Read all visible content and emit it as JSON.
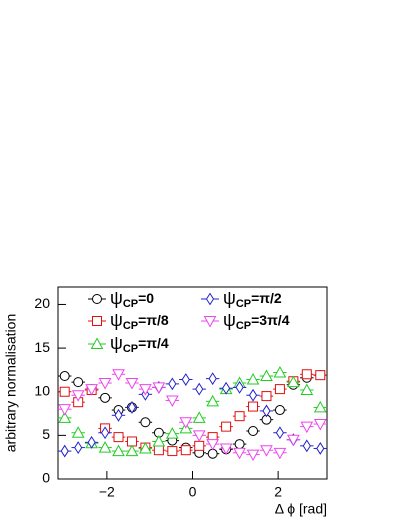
{
  "chart_data": {
    "type": "scatter",
    "x_label": "Δ ϕ [rad]",
    "y_label": "arbitrary normalisation",
    "xlim": [
      -3.1416,
      3.1416
    ],
    "ylim": [
      0,
      22
    ],
    "xticks": [
      {
        "value": -2,
        "label": "−2"
      },
      0,
      2
    ],
    "yticks": [
      0,
      5,
      10,
      15,
      20
    ],
    "x": [
      -2.985,
      -2.67,
      -2.356,
      -2.042,
      -1.728,
      -1.414,
      -1.1,
      -0.785,
      -0.471,
      -0.157,
      0.157,
      0.471,
      0.785,
      1.1,
      1.414,
      1.728,
      2.042,
      2.356,
      2.67,
      2.985
    ],
    "series": [
      {
        "name": "ψCP=0",
        "color": "#000000",
        "marker": "circle",
        "values": [
          11.8,
          11.1,
          10.3,
          9.3,
          7.9,
          8.2,
          6.5,
          5.3,
          4.4,
          3.6,
          3.0,
          2.9,
          3.4,
          4.0,
          5.5,
          6.8,
          7.9,
          10.8,
          11.6,
          11.9
        ]
      },
      {
        "name": "ψCP=π/8",
        "color": "#e01010",
        "marker": "square",
        "values": [
          10.0,
          8.8,
          10.2,
          5.8,
          4.8,
          4.3,
          3.6,
          3.3,
          3.2,
          3.3,
          3.8,
          4.8,
          6.0,
          7.2,
          8.3,
          9.5,
          10.3,
          11.2,
          12.0,
          11.9
        ]
      },
      {
        "name": "ψCP=π/4",
        "color": "#22cc22",
        "marker": "triangle-up",
        "values": [
          7.0,
          5.3,
          4.1,
          3.6,
          3.2,
          3.2,
          3.5,
          4.3,
          5.2,
          5.8,
          7.0,
          8.9,
          10.3,
          11.0,
          11.4,
          11.8,
          12.2,
          11.1,
          10.2,
          8.2
        ]
      },
      {
        "name": "ψCP=π/2",
        "color": "#2222cc",
        "marker": "diamond",
        "values": [
          3.2,
          3.6,
          4.2,
          5.3,
          7.3,
          8.2,
          9.7,
          10.5,
          10.9,
          11.4,
          10.3,
          11.5,
          10.4,
          10.5,
          9.6,
          7.8,
          5.3,
          4.5,
          3.8,
          3.5
        ]
      },
      {
        "name": "ψCP=3π/4",
        "color": "#ee44ee",
        "marker": "triangle-down",
        "values": [
          8.0,
          9.6,
          10.3,
          11.0,
          12.0,
          11.0,
          10.3,
          10.5,
          9.0,
          6.5,
          5.0,
          4.0,
          3.5,
          3.0,
          2.8,
          3.3,
          3.0,
          4.5,
          6.0,
          6.3
        ]
      }
    ]
  }
}
